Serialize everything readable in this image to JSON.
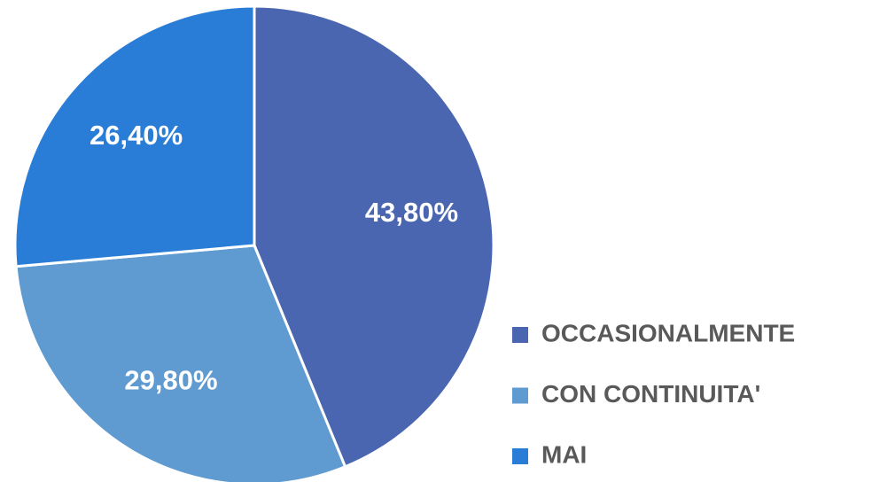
{
  "chart_data": {
    "type": "pie",
    "categories": [
      "OCCASIONALMENTE",
      "CON CONTINUITA'",
      "MAI"
    ],
    "values": [
      43.8,
      29.8,
      26.4
    ],
    "value_labels": [
      "43,80%",
      "29,80%",
      "26,40%"
    ],
    "colors": [
      "#4a66b0",
      "#5f9bd0",
      "#2a7dd6"
    ],
    "legend": "right"
  }
}
